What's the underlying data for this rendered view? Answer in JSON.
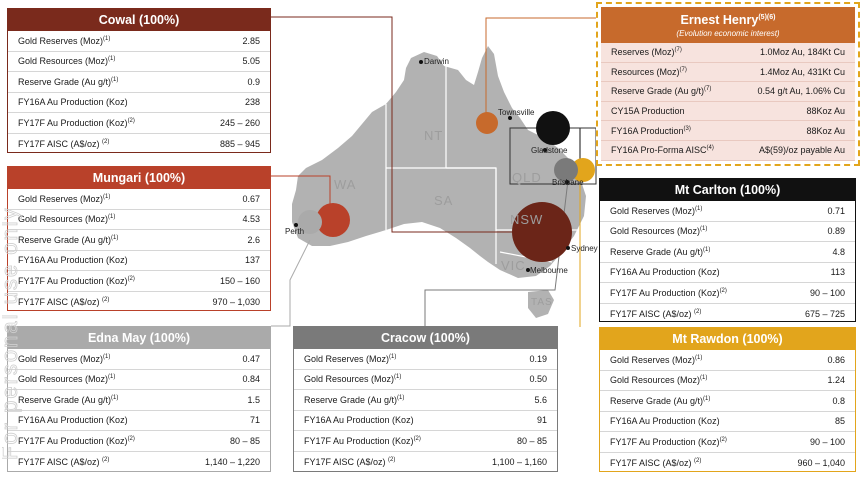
{
  "colors": {
    "cowal": "#7a2a1c",
    "mungari": "#b9412a",
    "edna_may": "#aaaaaa",
    "cracow": "#7a7a7a",
    "mt_carlton": "#111111",
    "mt_rawdon": "#e2a51c",
    "ernest_henry": "#c76a2c",
    "map_land": "#b2b2b2"
  },
  "watermark": "For personal use only",
  "map": {
    "states": [
      "WA",
      "NT",
      "SA",
      "QLD",
      "NSW",
      "VIC",
      "TAS"
    ],
    "cities": {
      "darwin": "Darwin",
      "townsville": "Townsville",
      "gladstone": "Gladstone",
      "brisbane": "Brisbane",
      "sydney": "Sydney",
      "melbourne": "Melbourne",
      "perth": "Perth"
    }
  },
  "cowal": {
    "title": "Cowal (100%)",
    "rows": [
      {
        "label": "Gold Reserves  (Moz)",
        "sup": "(1)",
        "value": "2.85"
      },
      {
        "label": "Gold Resources  (Moz)",
        "sup": "(1)",
        "value": "5.05"
      },
      {
        "label": "Reserve Grade (Au g/t)",
        "sup": "(1)",
        "value": "0.9"
      },
      {
        "label": "FY16A Au Production (Koz)",
        "sup": "",
        "value": "238"
      },
      {
        "label": "FY17F Au Production (Koz)",
        "sup": "(2)",
        "value": "245 – 260"
      },
      {
        "label": "FY17F AISC (A$/oz) ",
        "sup": "(2)",
        "value": "885 – 945"
      }
    ]
  },
  "mungari": {
    "title": "Mungari (100%)",
    "rows": [
      {
        "label": "Gold Reserves  (Moz)",
        "sup": "(1)",
        "value": "0.67"
      },
      {
        "label": "Gold Resources  (Moz)",
        "sup": "(1)",
        "value": "4.53"
      },
      {
        "label": "Reserve Grade (Au g/t)",
        "sup": "(1)",
        "value": "2.6"
      },
      {
        "label": "FY16A Au Production (Koz)",
        "sup": "",
        "value": "137"
      },
      {
        "label": "FY17F Au Production (Koz)",
        "sup": "(2)",
        "value": "150 – 160"
      },
      {
        "label": "FY17F AISC (A$/oz) ",
        "sup": "(2)",
        "value": "970 – 1,030"
      }
    ]
  },
  "edna_may": {
    "title": "Edna May (100%)",
    "rows": [
      {
        "label": "Gold Reserves  (Moz)",
        "sup": "(1)",
        "value": "0.47"
      },
      {
        "label": "Gold Resources  (Moz)",
        "sup": "(1)",
        "value": "0.84"
      },
      {
        "label": "Reserve Grade (Au g/t)",
        "sup": "(1)",
        "value": "1.5"
      },
      {
        "label": "FY16A Au Production (Koz)",
        "sup": "",
        "value": "71"
      },
      {
        "label": "FY17F Au Production (Koz)",
        "sup": "(2)",
        "value": "80 – 85"
      },
      {
        "label": "FY17F AISC (A$/oz) ",
        "sup": "(2)",
        "value": "1,140 – 1,220"
      }
    ]
  },
  "cracow": {
    "title": "Cracow (100%)",
    "rows": [
      {
        "label": "Gold Reserves  (Moz)",
        "sup": "(1)",
        "value": "0.19"
      },
      {
        "label": "Gold Resources  (Moz)",
        "sup": "(1)",
        "value": "0.50"
      },
      {
        "label": "Reserve Grade (Au g/t)",
        "sup": "(1)",
        "value": "5.6"
      },
      {
        "label": "FY16A Au Production (Koz)",
        "sup": "",
        "value": "91"
      },
      {
        "label": "FY17F Au Production (Koz)",
        "sup": "(2)",
        "value": "80 – 85"
      },
      {
        "label": "FY17F AISC (A$/oz) ",
        "sup": "(2)",
        "value": "1,100 – 1,160"
      }
    ]
  },
  "mt_carlton": {
    "title": "Mt Carlton (100%)",
    "rows": [
      {
        "label": "Gold Reserves  (Moz)",
        "sup": "(1)",
        "value": "0.71"
      },
      {
        "label": "Gold Resources  (Moz)",
        "sup": "(1)",
        "value": "0.89"
      },
      {
        "label": "Reserve Grade (Au g/t)",
        "sup": "(1)",
        "value": "4.8"
      },
      {
        "label": "FY16A Au Production (Koz)",
        "sup": "",
        "value": "113"
      },
      {
        "label": "FY17F Au Production (Koz)",
        "sup": "(2)",
        "value": "90 – 100"
      },
      {
        "label": "FY17F AISC (A$/oz) ",
        "sup": "(2)",
        "value": "675 – 725"
      }
    ]
  },
  "mt_rawdon": {
    "title": "Mt Rawdon (100%)",
    "rows": [
      {
        "label": "Gold Reserves  (Moz)",
        "sup": "(1)",
        "value": "0.86"
      },
      {
        "label": "Gold Resources  (Moz)",
        "sup": "(1)",
        "value": "1.24"
      },
      {
        "label": "Reserve Grade (Au g/t)",
        "sup": "(1)",
        "value": "0.8"
      },
      {
        "label": "FY16A Au Production (Koz)",
        "sup": "",
        "value": "85"
      },
      {
        "label": "FY17F Au Production (Koz)",
        "sup": "(2)",
        "value": "90 – 100"
      },
      {
        "label": "FY17F AISC (A$/oz) ",
        "sup": "(2)",
        "value": "960 – 1,040"
      }
    ]
  },
  "ernest_henry": {
    "title": "Ernest Henry",
    "title_sup": "(5)(6)",
    "subtitle": "(Evolution economic interest)",
    "rows": [
      {
        "label": "Reserves  (Moz)",
        "sup": "(7)",
        "value": "1.0Moz Au, 184Kt Cu"
      },
      {
        "label": "Resources  (Moz)",
        "sup": "(7)",
        "value": "1.4Moz Au, 431Kt Cu"
      },
      {
        "label": "Reserve Grade (Au g/t)",
        "sup": "(7)",
        "value": "0.54 g/t Au, 1.06% Cu"
      },
      {
        "label": "CY15A Production",
        "sup": "",
        "value": "88Koz Au"
      },
      {
        "label": "FY16A Production",
        "sup": "(3)",
        "value": "88Koz Au"
      },
      {
        "label": "FY16A Pro-Forma AISC",
        "sup": "(4)",
        "value": "A$(59)/oz payable Au"
      }
    ]
  }
}
